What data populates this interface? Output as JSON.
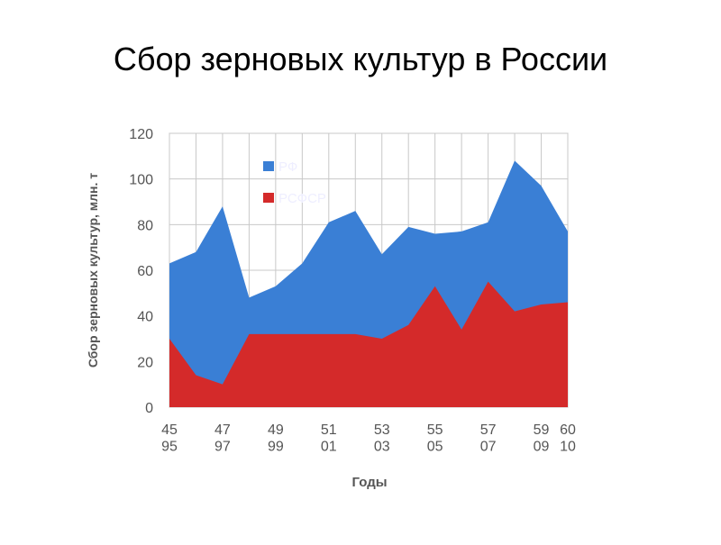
{
  "chart_data": {
    "type": "area",
    "title": "Сбор зерновых культур в России",
    "x_label": "Годы",
    "y_label": "Сбор зерновых культур, млн. т",
    "categories": [
      "45\n95",
      null,
      "47\n97",
      null,
      "49\n99",
      null,
      "51\n01",
      null,
      "53\n03",
      null,
      "55\n05",
      null,
      "57\n07",
      null,
      "59\n09",
      "60\n10"
    ],
    "series": [
      {
        "name": "РФ",
        "color": "#3a7fd5",
        "values": [
          63,
          68,
          88,
          48,
          53,
          63,
          81,
          86,
          67,
          79,
          76,
          77,
          81,
          108,
          97,
          77
        ]
      },
      {
        "name": "РСФСР",
        "color": "#d42a2a",
        "values": [
          30,
          14,
          10,
          32,
          32,
          32,
          32,
          32,
          30,
          36,
          53,
          34,
          55,
          42,
          45,
          46
        ]
      }
    ],
    "ylim": [
      0,
      120
    ],
    "yticks": [
      0,
      20,
      40,
      60,
      80,
      100,
      120
    ],
    "grid": true,
    "legend": "top-left"
  }
}
